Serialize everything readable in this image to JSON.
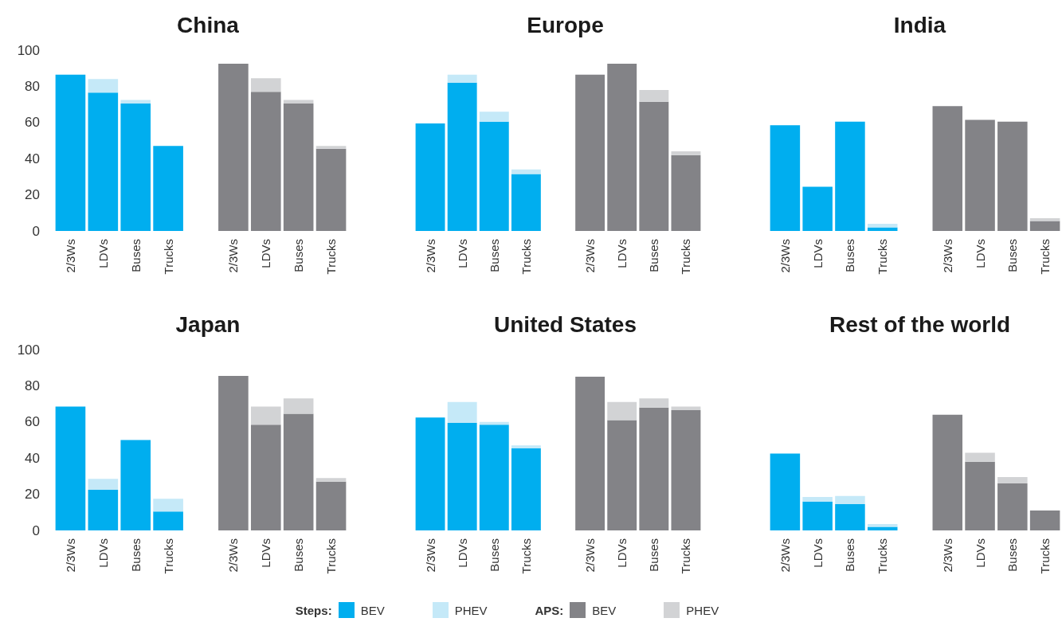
{
  "chart_data": [
    {
      "type": "bar",
      "title": "China",
      "categories": [
        "2/3Ws",
        "LDVs",
        "Buses",
        "Trucks",
        null,
        "2/3Ws",
        "LDVs",
        "Buses",
        "Trucks"
      ],
      "stacked": true,
      "ylim": [
        0,
        100
      ],
      "yticks": [
        0,
        20,
        40,
        60,
        80,
        100
      ],
      "legend": "bottom",
      "annotations": [
        "Steps:",
        "APS:"
      ],
      "series": [
        {
          "name": "BEV",
          "color": "#00aeef",
          "values": [
            86.5,
            76.5,
            70.5,
            47,
            null,
            null,
            null,
            null,
            null
          ]
        },
        {
          "name": "PHEV",
          "color": "#c5e9f8",
          "values": [
            null,
            7.5,
            2,
            null,
            null,
            null,
            null,
            null,
            null
          ]
        },
        {
          "name": "BEV",
          "color": "#838387",
          "values": [
            null,
            null,
            null,
            null,
            null,
            92.5,
            77,
            70.5,
            45.5
          ]
        },
        {
          "name": "PHEV",
          "color": "#d2d3d5",
          "values": [
            null,
            null,
            null,
            null,
            null,
            null,
            7.5,
            2,
            1.5
          ]
        }
      ]
    },
    {
      "type": "bar",
      "title": "Europe",
      "categories": [
        "2/3Ws",
        "LDVs",
        "Buses",
        "Trucks",
        null,
        "2/3Ws",
        "LDVs",
        "Buses",
        "Trucks"
      ],
      "stacked": true,
      "ylim": [
        0,
        100
      ],
      "yticks": [
        0,
        20,
        40,
        60,
        80,
        100
      ],
      "tick_labels": "x",
      "series": [
        {
          "color": "#00aeef",
          "values": [
            59.5,
            82,
            60.5,
            31.5,
            null,
            null,
            null,
            null,
            null
          ]
        },
        {
          "color": "#c5e9f8",
          "values": [
            null,
            4.5,
            5.5,
            2.5,
            null,
            null,
            null,
            null,
            null
          ]
        },
        {
          "color": "#838387",
          "values": [
            null,
            null,
            null,
            null,
            null,
            86.5,
            92.5,
            71.5,
            42
          ]
        },
        {
          "color": "#d2d3d5",
          "values": [
            null,
            null,
            null,
            null,
            null,
            null,
            null,
            6.5,
            2
          ]
        }
      ]
    },
    {
      "type": "bar",
      "title": "India",
      "categories": [
        "2/3Ws",
        "LDVs",
        "Buses",
        "Trucks",
        null,
        "2/3Ws",
        "LDVs",
        "Buses",
        "Trucks"
      ],
      "stacked": true,
      "ylim": [
        0,
        100
      ],
      "yticks": [
        0,
        20,
        40,
        60,
        80,
        100
      ],
      "tick_labels": "x",
      "series": [
        {
          "color": "#00aeef",
          "values": [
            58.5,
            24.5,
            60.5,
            2,
            null,
            null,
            null,
            null,
            null
          ]
        },
        {
          "color": "#c5e9f8",
          "values": [
            null,
            null,
            null,
            2,
            null,
            null,
            null,
            null,
            null
          ]
        },
        {
          "color": "#838387",
          "values": [
            null,
            null,
            null,
            null,
            null,
            69,
            61.5,
            60.5,
            5.5
          ]
        },
        {
          "color": "#d2d3d5",
          "values": [
            null,
            null,
            null,
            null,
            null,
            null,
            null,
            null,
            1.5
          ]
        }
      ]
    },
    {
      "type": "bar",
      "title": "Japan",
      "categories": [
        "2/3Ws",
        "LDVs",
        "Buses",
        "Trucks",
        null,
        "2/3Ws",
        "LDVs",
        "Buses",
        "Trucks"
      ],
      "stacked": true,
      "ylim": [
        0,
        100
      ],
      "yticks": [
        0,
        20,
        40,
        60,
        80,
        100
      ],
      "series": [
        {
          "color": "#00aeef",
          "values": [
            68.5,
            22.5,
            50,
            10.5,
            null,
            null,
            null,
            null,
            null
          ]
        },
        {
          "color": "#c5e9f8",
          "values": [
            null,
            6,
            null,
            7,
            null,
            null,
            null,
            null,
            null
          ]
        },
        {
          "color": "#838387",
          "values": [
            null,
            null,
            null,
            null,
            null,
            85.5,
            58.5,
            64.5,
            27
          ]
        },
        {
          "color": "#d2d3d5",
          "values": [
            null,
            null,
            null,
            null,
            null,
            null,
            10,
            8.5,
            2
          ]
        }
      ]
    },
    {
      "type": "bar",
      "title": "United States",
      "categories": [
        "2/3Ws",
        "LDVs",
        "Buses",
        "Trucks",
        null,
        "2/3Ws",
        "LDVs",
        "Buses",
        "Trucks"
      ],
      "stacked": true,
      "ylim": [
        0,
        100
      ],
      "yticks": [
        0,
        20,
        40,
        60,
        80,
        100
      ],
      "tick_labels": "x",
      "series": [
        {
          "color": "#00aeef",
          "values": [
            62.5,
            59.5,
            58.5,
            45.5,
            null,
            null,
            null,
            null,
            null
          ]
        },
        {
          "color": "#c5e9f8",
          "values": [
            null,
            11.5,
            1.5,
            1.5,
            null,
            null,
            null,
            null,
            null
          ]
        },
        {
          "color": "#838387",
          "values": [
            null,
            null,
            null,
            null,
            null,
            85,
            61,
            68,
            66.5
          ]
        },
        {
          "color": "#d2d3d5",
          "values": [
            null,
            null,
            null,
            null,
            null,
            null,
            10,
            5,
            2
          ]
        }
      ]
    },
    {
      "type": "bar",
      "title": "Rest of the world",
      "categories": [
        "2/3Ws",
        "LDVs",
        "Buses",
        "Trucks",
        null,
        "2/3Ws",
        "LDVs",
        "Buses",
        "Trucks"
      ],
      "stacked": true,
      "ylim": [
        0,
        100
      ],
      "yticks": [
        0,
        20,
        40,
        60,
        80,
        100
      ],
      "tick_labels": "x",
      "series": [
        {
          "color": "#00aeef",
          "values": [
            42.5,
            16,
            14.5,
            2,
            null,
            null,
            null,
            null,
            null
          ]
        },
        {
          "color": "#c5e9f8",
          "values": [
            null,
            2.5,
            4.5,
            1.5,
            null,
            null,
            null,
            null,
            null
          ]
        },
        {
          "color": "#838387",
          "values": [
            null,
            null,
            null,
            null,
            null,
            64,
            38,
            26,
            11
          ]
        },
        {
          "color": "#d2d3d5",
          "values": [
            null,
            null,
            null,
            null,
            null,
            null,
            5,
            3.5,
            null
          ]
        }
      ]
    }
  ]
}
